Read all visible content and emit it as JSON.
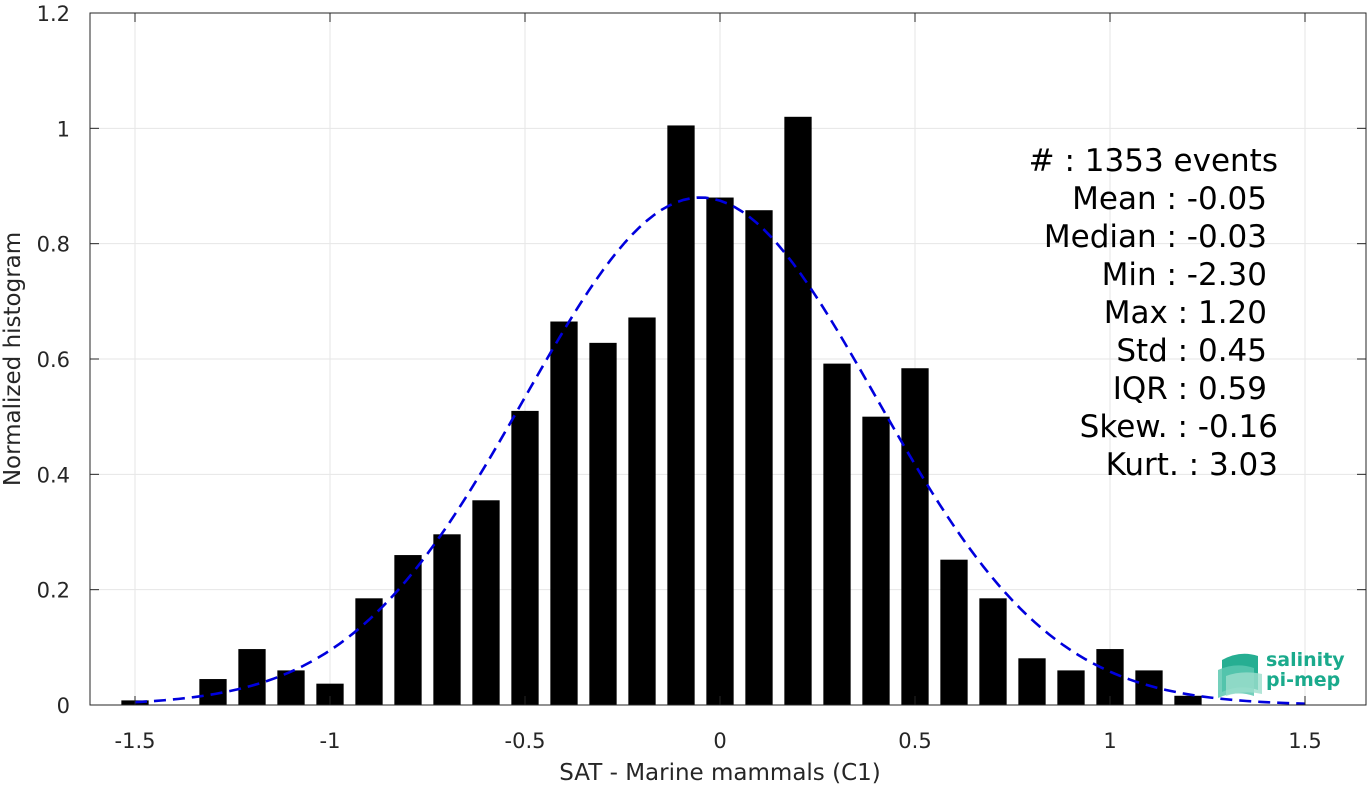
{
  "chart_data": {
    "type": "bar",
    "xlabel": "SAT - Marine mammals (C1)",
    "ylabel": "Normalized histogram",
    "xlim": [
      -1.6,
      1.65
    ],
    "ylim": [
      0,
      1.2
    ],
    "grid": true,
    "x_ticks": [
      "-1.5",
      "-1",
      "-0.5",
      "0",
      "0.5",
      "1",
      "1.5"
    ],
    "y_ticks": [
      "0",
      "0.2",
      "0.4",
      "0.6",
      "0.8",
      "1",
      "1.2"
    ],
    "bar_color": "#000000",
    "bin_width": 0.1,
    "bars": {
      "x": [
        -1.5,
        -1.3,
        -1.2,
        -1.1,
        -1.0,
        -0.9,
        -0.8,
        -0.7,
        -0.6,
        -0.5,
        -0.4,
        -0.3,
        -0.2,
        -0.1,
        0.0,
        0.1,
        0.2,
        0.3,
        0.4,
        0.5,
        0.6,
        0.7,
        0.8,
        0.9,
        1.0,
        1.1,
        1.2
      ],
      "values": [
        0.008,
        0.045,
        0.097,
        0.06,
        0.037,
        0.185,
        0.26,
        0.296,
        0.355,
        0.51,
        0.665,
        0.628,
        0.672,
        1.005,
        0.88,
        0.858,
        1.02,
        0.592,
        0.5,
        0.584,
        0.252,
        0.185,
        0.081,
        0.06,
        0.097,
        0.06,
        0.016
      ]
    },
    "fit": {
      "name": "Gaussian fit",
      "color": "#0000dd",
      "style": "dashed",
      "mean": -0.05,
      "std": 0.45,
      "peak": 0.88,
      "x_range": [
        -1.5,
        1.5
      ]
    }
  },
  "stats": [
    "#  : 1353 events",
    "Mean : -0.05",
    "Median : -0.03",
    "Min : -2.30",
    "Max : 1.20",
    "Std : 0.45",
    "IQR : 0.59",
    "Skew. : -0.16",
    "Kurt. : 3.03"
  ],
  "logo": {
    "line1": "salinity",
    "line2": "pi-mep",
    "color": "#1aaa8c"
  }
}
